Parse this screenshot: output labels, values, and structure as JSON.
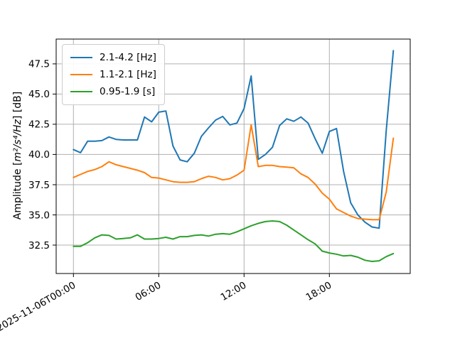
{
  "figure": {
    "ylabel_prefix": "Amplitude [",
    "ylabel_math": "m²/s⁴/Hz",
    "ylabel_suffix": "] [dB]"
  },
  "chart_data": {
    "type": "line",
    "title": "",
    "ylabel": "Amplitude [m²/s⁴/Hz] [dB]",
    "xlabel": "",
    "grid": true,
    "legend_position": "upper left",
    "x_start": "2025-11-06T00:00",
    "x_step_minutes": 30,
    "ylim": [
      30.15,
      49.55
    ],
    "x": [
      "00:00",
      "00:30",
      "01:00",
      "01:30",
      "02:00",
      "02:30",
      "03:00",
      "03:30",
      "04:00",
      "04:30",
      "05:00",
      "05:30",
      "06:00",
      "06:30",
      "07:00",
      "07:30",
      "08:00",
      "08:30",
      "09:00",
      "09:30",
      "10:00",
      "10:30",
      "11:00",
      "11:30",
      "12:00",
      "12:30",
      "13:00",
      "13:30",
      "14:00",
      "14:30",
      "15:00",
      "15:30",
      "16:00",
      "16:30",
      "17:00",
      "17:30",
      "18:00",
      "18:30",
      "19:00",
      "19:30",
      "20:00",
      "20:30",
      "21:00",
      "21:30",
      "22:00",
      "22:30"
    ],
    "series": [
      {
        "name": "2.1-4.2 [Hz]",
        "color": "#1f77b4",
        "values": [
          40.4,
          40.15,
          41.1,
          41.1,
          41.15,
          41.45,
          41.25,
          41.2,
          41.2,
          41.2,
          43.1,
          42.7,
          43.5,
          43.6,
          40.7,
          39.55,
          39.4,
          40.1,
          41.5,
          42.2,
          42.85,
          43.15,
          42.45,
          42.6,
          43.8,
          46.5,
          39.6,
          40.0,
          40.6,
          42.4,
          42.95,
          42.75,
          43.1,
          42.6,
          41.3,
          40.1,
          41.9,
          42.15,
          38.6,
          36.0,
          35.0,
          34.4,
          34.0,
          33.9,
          42.0,
          48.6
        ]
      },
      {
        "name": "1.1-2.1 [Hz]",
        "color": "#ff7f0e",
        "values": [
          38.1,
          38.35,
          38.6,
          38.75,
          39.0,
          39.4,
          39.15,
          39.0,
          38.85,
          38.7,
          38.5,
          38.1,
          38.05,
          37.9,
          37.75,
          37.7,
          37.7,
          37.75,
          38.0,
          38.2,
          38.1,
          37.9,
          38.0,
          38.3,
          38.7,
          42.45,
          39.0,
          39.1,
          39.1,
          39.0,
          38.95,
          38.9,
          38.4,
          38.1,
          37.55,
          36.8,
          36.3,
          35.5,
          35.2,
          34.9,
          34.7,
          34.65,
          34.6,
          34.6,
          36.9,
          41.35
        ]
      },
      {
        "name": "0.95-1.9 [s]",
        "color": "#2ca02c",
        "values": [
          32.4,
          32.4,
          32.7,
          33.1,
          33.35,
          33.3,
          33.0,
          33.05,
          33.1,
          33.35,
          33.0,
          33.0,
          33.05,
          33.15,
          33.0,
          33.2,
          33.2,
          33.3,
          33.35,
          33.25,
          33.4,
          33.45,
          33.4,
          33.6,
          33.85,
          34.1,
          34.3,
          34.45,
          34.5,
          34.45,
          34.15,
          33.75,
          33.35,
          32.95,
          32.6,
          32.0,
          31.85,
          31.75,
          31.6,
          31.65,
          31.5,
          31.25,
          31.15,
          31.2,
          31.55,
          31.8
        ]
      }
    ],
    "yticks": [
      {
        "value": 47.5,
        "label": "47.5"
      },
      {
        "value": 45.0,
        "label": "45.0"
      },
      {
        "value": 42.5,
        "label": "42.5"
      },
      {
        "value": 40.0,
        "label": "40.0"
      },
      {
        "value": 37.5,
        "label": "37.5"
      },
      {
        "value": 35.0,
        "label": "35.0"
      },
      {
        "value": 32.5,
        "label": "32.5"
      }
    ],
    "xticks": [
      {
        "index": 0,
        "label": "2025-11-06T00:00"
      },
      {
        "index": 12,
        "label": "06:00"
      },
      {
        "index": 24,
        "label": "12:00"
      },
      {
        "index": 36,
        "label": "18:00"
      }
    ]
  }
}
